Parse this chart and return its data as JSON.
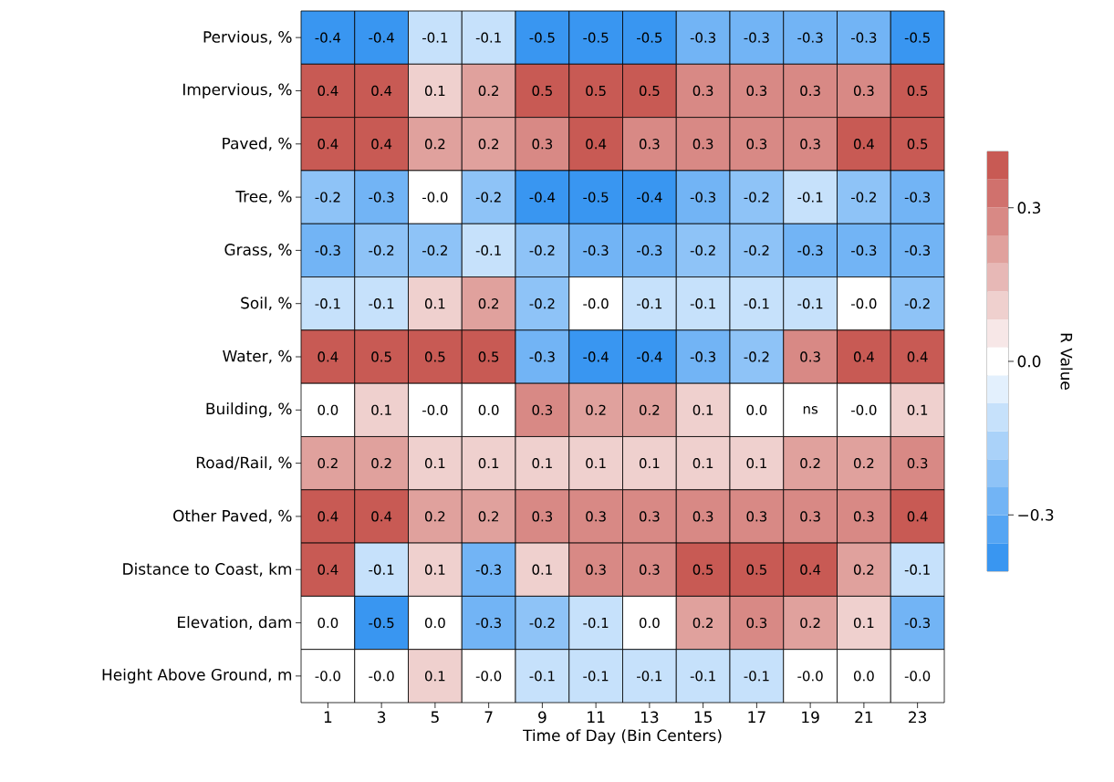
{
  "chart_data": {
    "type": "heatmap",
    "xlabel": "Time of Day (Bin Centers)",
    "clabel": "R Value",
    "categories": [
      "1",
      "3",
      "5",
      "7",
      "9",
      "11",
      "13",
      "15",
      "17",
      "19",
      "21",
      "23"
    ],
    "y_categories": [
      "Pervious, %",
      "Impervious, %",
      "Paved, %",
      "Tree, %",
      "Grass, %",
      "Soil, %",
      "Water, %",
      "Building, %",
      "Road/Rail, %",
      "Other Paved, %",
      "Distance to Coast, km",
      "Elevation, dam",
      "Height Above Ground, m"
    ],
    "cells": [
      [
        -0.4,
        -0.4,
        -0.1,
        -0.1,
        -0.5,
        -0.5,
        -0.5,
        -0.3,
        -0.3,
        -0.3,
        -0.3,
        -0.5
      ],
      [
        0.4,
        0.4,
        0.1,
        0.2,
        0.5,
        0.5,
        0.5,
        0.3,
        0.3,
        0.3,
        0.3,
        0.5
      ],
      [
        0.4,
        0.4,
        0.2,
        0.2,
        0.3,
        0.4,
        0.3,
        0.3,
        0.3,
        0.3,
        0.4,
        0.5
      ],
      [
        -0.2,
        -0.3,
        -0.0,
        -0.2,
        -0.4,
        -0.5,
        -0.4,
        -0.3,
        -0.2,
        -0.1,
        -0.2,
        -0.3
      ],
      [
        -0.3,
        -0.2,
        -0.2,
        -0.1,
        -0.2,
        -0.3,
        -0.3,
        -0.2,
        -0.2,
        -0.3,
        -0.3,
        -0.3
      ],
      [
        -0.1,
        -0.1,
        0.1,
        0.2,
        -0.2,
        -0.0,
        -0.1,
        -0.1,
        -0.1,
        -0.1,
        -0.0,
        -0.2
      ],
      [
        0.4,
        0.5,
        0.5,
        0.5,
        -0.3,
        -0.4,
        -0.4,
        -0.3,
        -0.2,
        0.3,
        0.4,
        0.4
      ],
      [
        0.0,
        0.1,
        -0.0,
        0.0,
        0.3,
        0.2,
        0.2,
        0.1,
        0.0,
        null,
        -0.0,
        0.1
      ],
      [
        0.2,
        0.2,
        0.1,
        0.1,
        0.1,
        0.1,
        0.1,
        0.1,
        0.1,
        0.2,
        0.2,
        0.3
      ],
      [
        0.4,
        0.4,
        0.2,
        0.2,
        0.3,
        0.3,
        0.3,
        0.3,
        0.3,
        0.3,
        0.3,
        0.4
      ],
      [
        0.4,
        -0.1,
        0.1,
        -0.3,
        0.1,
        0.3,
        0.3,
        0.5,
        0.5,
        0.4,
        0.2,
        -0.1
      ],
      [
        0.0,
        -0.5,
        0.0,
        -0.3,
        -0.2,
        -0.1,
        0.0,
        0.2,
        0.3,
        0.2,
        0.1,
        -0.3
      ],
      [
        -0.0,
        -0.0,
        0.1,
        -0.0,
        -0.1,
        -0.1,
        -0.1,
        -0.1,
        -0.1,
        -0.0,
        0.0,
        -0.0
      ]
    ],
    "cell_labels": [
      [
        "-0.4",
        "-0.4",
        "-0.1",
        "-0.1",
        "-0.5",
        "-0.5",
        "-0.5",
        "-0.3",
        "-0.3",
        "-0.3",
        "-0.3",
        "-0.5"
      ],
      [
        "0.4",
        "0.4",
        "0.1",
        "0.2",
        "0.5",
        "0.5",
        "0.5",
        "0.3",
        "0.3",
        "0.3",
        "0.3",
        "0.5"
      ],
      [
        "0.4",
        "0.4",
        "0.2",
        "0.2",
        "0.3",
        "0.4",
        "0.3",
        "0.3",
        "0.3",
        "0.3",
        "0.4",
        "0.5"
      ],
      [
        "-0.2",
        "-0.3",
        "-0.0",
        "-0.2",
        "-0.4",
        "-0.5",
        "-0.4",
        "-0.3",
        "-0.2",
        "-0.1",
        "-0.2",
        "-0.3"
      ],
      [
        "-0.3",
        "-0.2",
        "-0.2",
        "-0.1",
        "-0.2",
        "-0.3",
        "-0.3",
        "-0.2",
        "-0.2",
        "-0.3",
        "-0.3",
        "-0.3"
      ],
      [
        "-0.1",
        "-0.1",
        "0.1",
        "0.2",
        "-0.2",
        "-0.0",
        "-0.1",
        "-0.1",
        "-0.1",
        "-0.1",
        "-0.0",
        "-0.2"
      ],
      [
        "0.4",
        "0.5",
        "0.5",
        "0.5",
        "-0.3",
        "-0.4",
        "-0.4",
        "-0.3",
        "-0.2",
        "0.3",
        "0.4",
        "0.4"
      ],
      [
        "0.0",
        "0.1",
        "-0.0",
        "0.0",
        "0.3",
        "0.2",
        "0.2",
        "0.1",
        "0.0",
        "ns",
        "-0.0",
        "0.1"
      ],
      [
        "0.2",
        "0.2",
        "0.1",
        "0.1",
        "0.1",
        "0.1",
        "0.1",
        "0.1",
        "0.1",
        "0.2",
        "0.2",
        "0.3"
      ],
      [
        "0.4",
        "0.4",
        "0.2",
        "0.2",
        "0.3",
        "0.3",
        "0.3",
        "0.3",
        "0.3",
        "0.3",
        "0.3",
        "0.4"
      ],
      [
        "0.4",
        "-0.1",
        "0.1",
        "-0.3",
        "0.1",
        "0.3",
        "0.3",
        "0.5",
        "0.5",
        "0.4",
        "0.2",
        "-0.1"
      ],
      [
        "0.0",
        "-0.5",
        "0.0",
        "-0.3",
        "-0.2",
        "-0.1",
        "0.0",
        "0.2",
        "0.3",
        "0.2",
        "0.1",
        "-0.3"
      ],
      [
        "-0.0",
        "-0.0",
        "0.1",
        "-0.0",
        "-0.1",
        "-0.1",
        "-0.1",
        "-0.1",
        "-0.1",
        "-0.0",
        "0.0",
        "-0.0"
      ]
    ],
    "clim": [
      -0.41,
      0.41
    ],
    "cticks": [
      {
        "value": -0.3,
        "label": "−0.3"
      },
      {
        "value": 0.0,
        "label": "0.0"
      },
      0.3
    ]
  }
}
